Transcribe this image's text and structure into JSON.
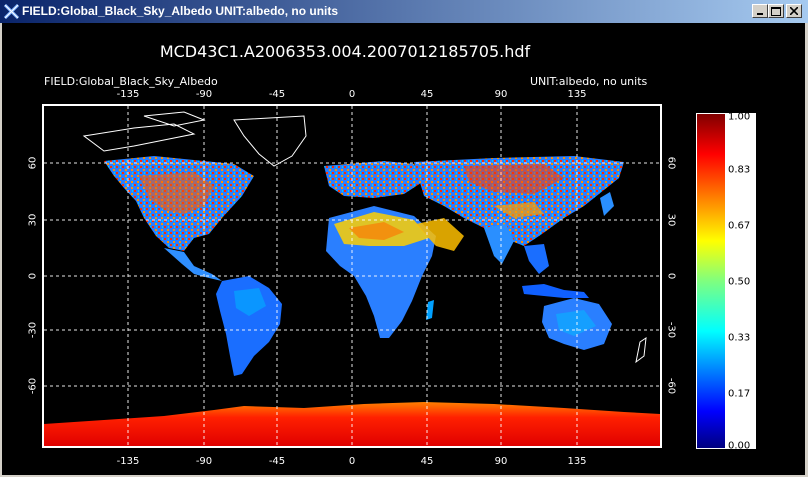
{
  "window": {
    "title": "FIELD:Global_Black_Sky_Albedo  UNIT:albedo, no units",
    "minimize_icon": "minimize-icon",
    "maximize_icon": "maximize-icon",
    "close_icon": "close-icon"
  },
  "plot": {
    "file_title": "MCD43C1.A2006353.004.2007012185705.hdf",
    "field_label": "FIELD:Global_Black_Sky_Albedo",
    "unit_label": "UNIT:albedo, no units",
    "lon_ticks": [
      "-135",
      "-90",
      "-45",
      "0",
      "45",
      "90",
      "135"
    ],
    "lat_ticks": [
      "60",
      "30",
      "0",
      "-30",
      "-60"
    ]
  },
  "colorbar": {
    "labels": [
      "1.00",
      "0.83",
      "0.67",
      "0.50",
      "0.33",
      "0.17",
      "0.00"
    ],
    "range": [
      0,
      1
    ],
    "colors": [
      "#00007f",
      "#0000ff",
      "#007fff",
      "#00ffff",
      "#7fff7f",
      "#ffff00",
      "#ff7f00",
      "#ff0000",
      "#800000"
    ]
  }
}
